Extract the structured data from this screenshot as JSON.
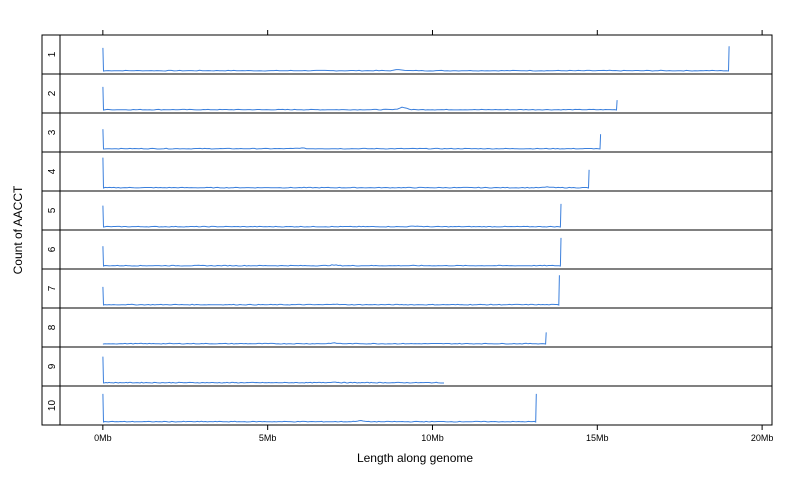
{
  "chart_data": {
    "type": "line",
    "xlabel": "Length along genome",
    "ylabel": "Count of AACCT",
    "xlim": [
      -1.3,
      20.3
    ],
    "x_ticks": [
      {
        "value": 0,
        "label": "0Mb"
      },
      {
        "value": 5,
        "label": "5Mb"
      },
      {
        "value": 10,
        "label": "10Mb"
      },
      {
        "value": 15,
        "label": "15Mb"
      },
      {
        "value": 20,
        "label": "20Mb"
      }
    ],
    "line_color": "#3a7fdc",
    "panels": [
      {
        "label": "1",
        "length_mb": 19.0,
        "start_peak": 0.7,
        "end_peak": 0.75,
        "bump": {
          "x": 9.0,
          "h": 0.04
        }
      },
      {
        "label": "2",
        "length_mb": 15.6,
        "start_peak": 0.7,
        "end_peak": 0.3,
        "bump": {
          "x": 9.1,
          "h": 0.08
        }
      },
      {
        "label": "3",
        "length_mb": 15.1,
        "start_peak": 0.6,
        "end_peak": 0.45,
        "bump": {
          "x": 6.0,
          "h": 0.02
        }
      },
      {
        "label": "4",
        "length_mb": 14.75,
        "start_peak": 0.92,
        "end_peak": 0.55,
        "bump": {
          "x": 13.5,
          "h": 0.02
        }
      },
      {
        "label": "5",
        "length_mb": 13.9,
        "start_peak": 0.65,
        "end_peak": 0.7,
        "bump": {
          "x": 9.5,
          "h": 0.02
        }
      },
      {
        "label": "6",
        "length_mb": 13.9,
        "start_peak": 0.6,
        "end_peak": 0.85,
        "bump": {
          "x": 7.0,
          "h": 0.02
        }
      },
      {
        "label": "7",
        "length_mb": 13.85,
        "start_peak": 0.55,
        "end_peak": 0.9,
        "bump": {
          "x": 7.0,
          "h": 0.02
        }
      },
      {
        "label": "8",
        "length_mb": 13.45,
        "start_peak": 0.0,
        "end_peak": 0.35,
        "bump": {
          "x": 7.0,
          "h": 0.02
        }
      },
      {
        "label": "9",
        "length_mb": 10.35,
        "start_peak": 0.8,
        "end_peak": 0.0,
        "bump": {
          "x": 7.0,
          "h": 0.02
        }
      },
      {
        "label": "10",
        "length_mb": 13.15,
        "start_peak": 0.85,
        "end_peak": 0.85,
        "bump": {
          "x": 7.8,
          "h": 0.03
        }
      }
    ]
  }
}
